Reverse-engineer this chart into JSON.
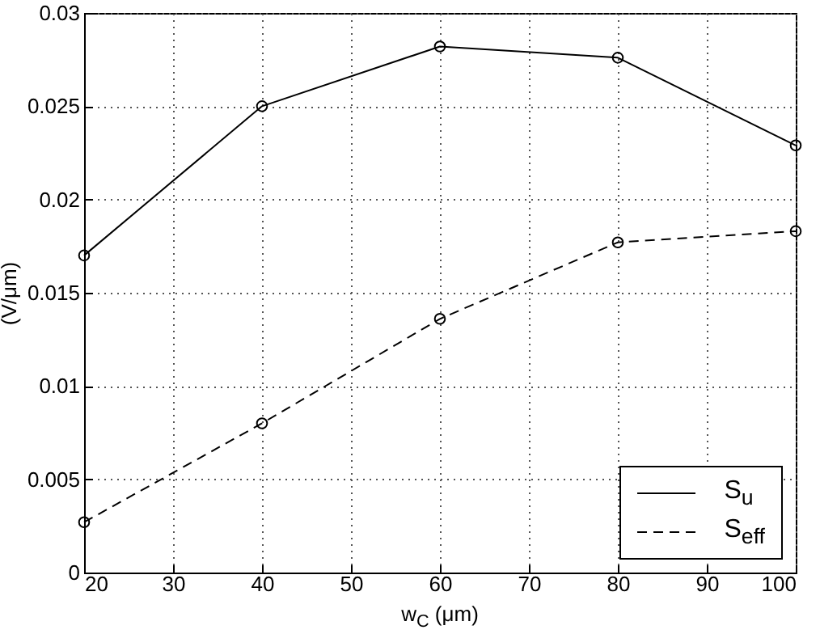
{
  "chart_data": {
    "type": "line",
    "xlabel": "w$_{C}$ (μm)",
    "ylabel": "(V/μm)",
    "x": [
      20,
      40,
      60,
      80,
      100
    ],
    "series": [
      {
        "name": "S$_{u}$",
        "color": "#000000",
        "line_style": "solid",
        "values": [
          0.017,
          0.025,
          0.0282,
          0.0276,
          0.0229
        ]
      },
      {
        "name": "S$_{eff}$",
        "color": "#000000",
        "line_style": "dashed",
        "values": [
          0.0027,
          0.008,
          0.0136,
          0.0177,
          0.0183
        ]
      }
    ],
    "xlim": [
      20,
      100
    ],
    "xticks": [
      20,
      30,
      40,
      50,
      60,
      70,
      80,
      90,
      100
    ],
    "ylim": [
      0,
      0.03
    ],
    "yticks": [
      0,
      0.005,
      0.01,
      0.015,
      0.02,
      0.025,
      0.03
    ],
    "grid": true,
    "marker": "circle",
    "legend": "bottom right"
  }
}
